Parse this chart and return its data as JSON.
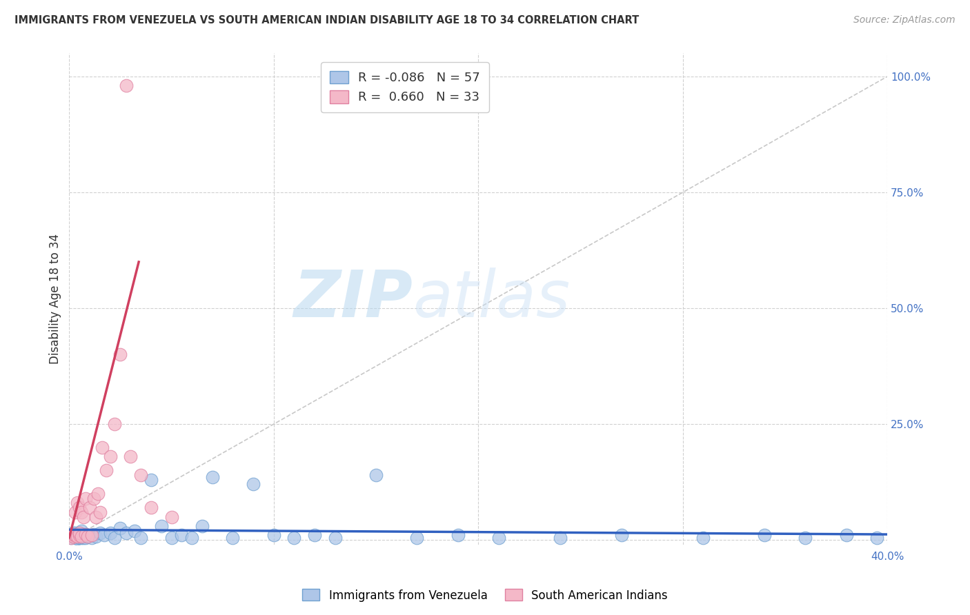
{
  "title": "IMMIGRANTS FROM VENEZUELA VS SOUTH AMERICAN INDIAN DISABILITY AGE 18 TO 34 CORRELATION CHART",
  "source": "Source: ZipAtlas.com",
  "ylabel": "Disability Age 18 to 34",
  "xlim": [
    0.0,
    0.4
  ],
  "ylim": [
    -0.01,
    1.05
  ],
  "blue_color": "#aec6e8",
  "blue_edge_color": "#6fa0d0",
  "pink_color": "#f4b8c8",
  "pink_edge_color": "#e080a0",
  "blue_line_color": "#3060c0",
  "pink_line_color": "#d04060",
  "diag_line_color": "#c8c8c8",
  "blue_R": -0.086,
  "blue_N": 57,
  "pink_R": 0.66,
  "pink_N": 33,
  "watermark_zip": "ZIP",
  "watermark_atlas": "atlas",
  "blue_scatter_x": [
    0.001,
    0.001,
    0.002,
    0.002,
    0.003,
    0.003,
    0.003,
    0.004,
    0.004,
    0.004,
    0.005,
    0.005,
    0.005,
    0.006,
    0.006,
    0.006,
    0.007,
    0.007,
    0.008,
    0.008,
    0.009,
    0.01,
    0.011,
    0.012,
    0.013,
    0.015,
    0.017,
    0.02,
    0.022,
    0.025,
    0.028,
    0.032,
    0.035,
    0.04,
    0.045,
    0.05,
    0.055,
    0.06,
    0.065,
    0.07,
    0.08,
    0.09,
    0.1,
    0.11,
    0.12,
    0.13,
    0.15,
    0.17,
    0.19,
    0.21,
    0.24,
    0.27,
    0.31,
    0.34,
    0.36,
    0.38,
    0.395
  ],
  "blue_scatter_y": [
    0.005,
    0.01,
    0.008,
    0.015,
    0.005,
    0.01,
    0.015,
    0.003,
    0.008,
    0.012,
    0.005,
    0.01,
    0.015,
    0.005,
    0.01,
    0.02,
    0.005,
    0.01,
    0.005,
    0.012,
    0.008,
    0.01,
    0.005,
    0.012,
    0.008,
    0.015,
    0.01,
    0.015,
    0.005,
    0.025,
    0.015,
    0.02,
    0.005,
    0.13,
    0.03,
    0.005,
    0.01,
    0.005,
    0.03,
    0.135,
    0.005,
    0.12,
    0.01,
    0.005,
    0.01,
    0.005,
    0.14,
    0.005,
    0.01,
    0.005,
    0.005,
    0.01,
    0.005,
    0.01,
    0.005,
    0.01,
    0.005
  ],
  "pink_scatter_x": [
    0.001,
    0.001,
    0.002,
    0.002,
    0.003,
    0.003,
    0.004,
    0.004,
    0.005,
    0.005,
    0.005,
    0.006,
    0.006,
    0.007,
    0.008,
    0.008,
    0.009,
    0.01,
    0.011,
    0.012,
    0.013,
    0.014,
    0.015,
    0.016,
    0.018,
    0.02,
    0.022,
    0.025,
    0.028,
    0.03,
    0.035,
    0.04,
    0.05
  ],
  "pink_scatter_y": [
    0.005,
    0.01,
    0.008,
    0.012,
    0.01,
    0.06,
    0.008,
    0.08,
    0.01,
    0.015,
    0.07,
    0.008,
    0.06,
    0.05,
    0.012,
    0.09,
    0.008,
    0.07,
    0.01,
    0.09,
    0.05,
    0.1,
    0.06,
    0.2,
    0.15,
    0.18,
    0.25,
    0.4,
    0.98,
    0.18,
    0.14,
    0.07,
    0.05
  ],
  "pink_line_x0": 0.0,
  "pink_line_y0": 0.005,
  "pink_line_x1": 0.034,
  "pink_line_y1": 0.6,
  "blue_line_x0": 0.0,
  "blue_line_y0": 0.022,
  "blue_line_x1": 0.4,
  "blue_line_y1": 0.012
}
